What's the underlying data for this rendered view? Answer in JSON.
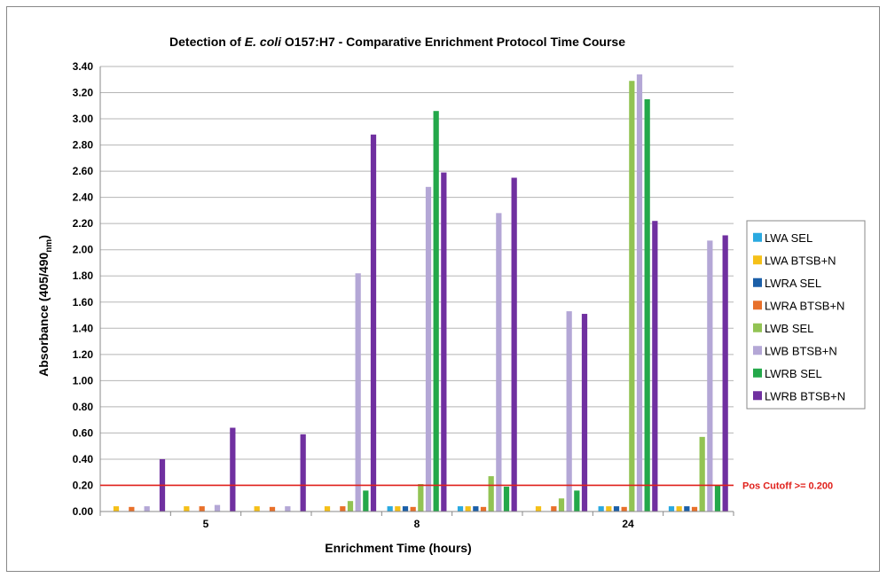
{
  "chart_data": {
    "type": "bar",
    "title_parts": [
      "Detection of ",
      "E. coli",
      " O157:H7 - Comparative Enrichment Protocol Time Course"
    ],
    "ylabel_main": "Absorbance (405/490",
    "ylabel_sub": "nm",
    "ylabel_end": ")",
    "xlabel": "Enrichment Time (hours)",
    "ylim": [
      0,
      3.4
    ],
    "ytick_step": 0.2,
    "ytick_labels": [
      "0.00",
      "0.20",
      "0.40",
      "0.60",
      "0.80",
      "1.00",
      "1.20",
      "1.40",
      "1.60",
      "1.80",
      "2.00",
      "2.20",
      "2.40",
      "2.60",
      "2.80",
      "3.00",
      "3.20",
      "3.40"
    ],
    "categories": [
      "5",
      "8",
      "24"
    ],
    "groups_per_category": 3,
    "grid": true,
    "legend_position": "right",
    "cutoff": {
      "value": 0.2,
      "label": "Pos Cutoff >= 0.200",
      "color": "#e0201b"
    },
    "series": [
      {
        "name": "LWA SEL",
        "color": "#2aa9e0",
        "values": [
          [
            0,
            0,
            0
          ],
          [
            0,
            0.04,
            0.04
          ],
          [
            0,
            0.04,
            0.04
          ]
        ]
      },
      {
        "name": "LWA BTSB+N",
        "color": "#f5c018",
        "values": [
          [
            0.04,
            0.04,
            0.04
          ],
          [
            0.04,
            0.04,
            0.04
          ],
          [
            0.04,
            0.04,
            0.04
          ]
        ]
      },
      {
        "name": "LWRA SEL",
        "color": "#1b5fa8",
        "values": [
          [
            0,
            0,
            0
          ],
          [
            0,
            0.04,
            0.04
          ],
          [
            0,
            0.04,
            0.04
          ]
        ]
      },
      {
        "name": "LWRA BTSB+N",
        "color": "#e8702a",
        "values": [
          [
            0.035,
            0.04,
            0.035
          ],
          [
            0.04,
            0.035,
            0.035
          ],
          [
            0.04,
            0.035,
            0.035
          ]
        ]
      },
      {
        "name": "LWB SEL",
        "color": "#92c353",
        "values": [
          [
            0,
            0,
            0
          ],
          [
            0.08,
            0.21,
            0.27
          ],
          [
            0.1,
            3.29,
            0.57
          ]
        ]
      },
      {
        "name": "LWB BTSB+N",
        "color": "#b4a7d6",
        "values": [
          [
            0.04,
            0.05,
            0.04
          ],
          [
            1.82,
            2.48,
            2.28
          ],
          [
            1.53,
            3.34,
            2.07
          ]
        ]
      },
      {
        "name": "LWRB SEL",
        "color": "#23a84a",
        "values": [
          [
            0,
            0,
            0
          ],
          [
            0.16,
            3.06,
            0.19
          ],
          [
            0.16,
            3.15,
            0.2
          ]
        ]
      },
      {
        "name": "LWRB BTSB+N",
        "color": "#7030a0",
        "values": [
          [
            0.4,
            0.64,
            0.59
          ],
          [
            2.88,
            2.59,
            2.55
          ],
          [
            1.51,
            2.22,
            2.11
          ]
        ]
      }
    ]
  }
}
